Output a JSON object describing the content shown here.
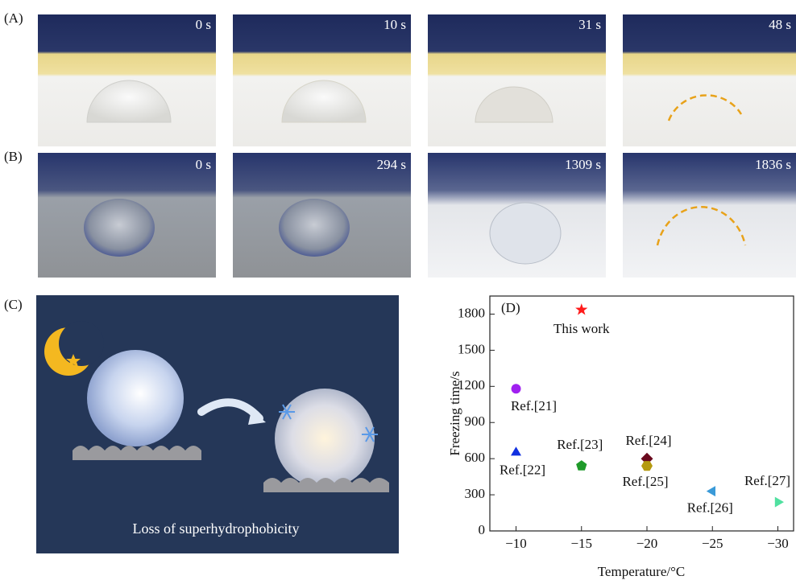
{
  "panels": {
    "A": {
      "label": "(A)",
      "times": [
        "0 s",
        "10 s",
        "31 s",
        "48 s"
      ]
    },
    "B": {
      "label": "(B)",
      "times": [
        "0 s",
        "294 s",
        "1309 s",
        "1836 s"
      ]
    },
    "C": {
      "label": "(C)",
      "caption": "Loss of superhydrophobicity"
    }
  },
  "chart_data": {
    "type": "scatter",
    "panel_label": "(D)",
    "x_label": "Temperature/°C",
    "y_label": "Freezing time/s",
    "xlim": [
      -8,
      -31.2
    ],
    "ylim": [
      0,
      1950
    ],
    "xticks": [
      {
        "value": -10,
        "label": "−10"
      },
      {
        "value": -15,
        "label": "−15"
      },
      {
        "value": -20,
        "label": "−20"
      },
      {
        "value": -25,
        "label": "−25"
      },
      {
        "value": -30,
        "label": "−30"
      }
    ],
    "yticks": [
      0,
      300,
      600,
      900,
      1200,
      1500,
      1800
    ],
    "series": [
      {
        "name": "This work",
        "color": "#ff1a1a",
        "marker": "star",
        "x": [
          -15
        ],
        "values": [
          1836
        ]
      },
      {
        "name": "Ref.[21]",
        "color": "#a020f0",
        "marker": "circle",
        "x": [
          -10
        ],
        "values": [
          1180
        ]
      },
      {
        "name": "Ref.[22]",
        "color": "#1030e0",
        "marker": "triangle-up",
        "x": [
          -10
        ],
        "values": [
          650
        ]
      },
      {
        "name": "Ref.[23]",
        "color": "#1f9a2a",
        "marker": "pentagon",
        "x": [
          -15
        ],
        "values": [
          540
        ]
      },
      {
        "name": "Ref.[24]",
        "color": "#6a0a1e",
        "marker": "diamond",
        "x": [
          -20
        ],
        "values": [
          600
        ]
      },
      {
        "name": "Ref.[25]",
        "color": "#b59a10",
        "marker": "hexagon",
        "x": [
          -20
        ],
        "values": [
          540
        ]
      },
      {
        "name": "Ref.[26]",
        "color": "#3a9ad8",
        "marker": "triangle-left",
        "x": [
          -25
        ],
        "values": [
          330
        ]
      },
      {
        "name": "Ref.[27]",
        "color": "#50e0a0",
        "marker": "triangle-right",
        "x": [
          -30
        ],
        "values": [
          240
        ]
      }
    ]
  }
}
